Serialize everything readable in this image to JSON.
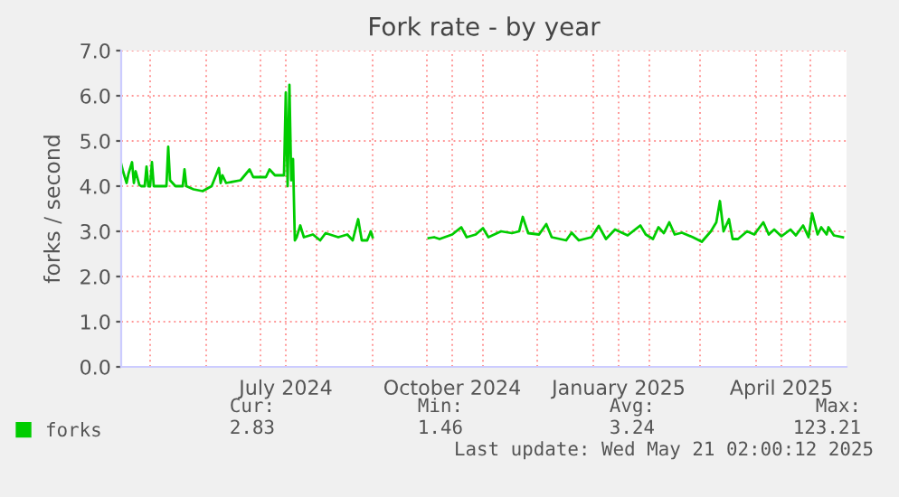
{
  "chart_data": {
    "type": "line",
    "title": "Fork rate - by year",
    "ylabel": "forks / second",
    "x": [
      "2024-04-15",
      "2024-04-16",
      "2024-04-18",
      "2024-04-19",
      "2024-04-21",
      "2024-04-22",
      "2024-04-23",
      "2024-04-25",
      "2024-04-26",
      "2024-04-28",
      "2024-04-29",
      "2024-04-30",
      "2024-05-01",
      "2024-05-02",
      "2024-05-03",
      "2024-05-10",
      "2024-05-11",
      "2024-05-12",
      "2024-05-15",
      "2024-05-19",
      "2024-05-20",
      "2024-05-21",
      "2024-05-25",
      "2024-05-30",
      "2024-06-04",
      "2024-06-08",
      "2024-06-09",
      "2024-06-10",
      "2024-06-12",
      "2024-06-20",
      "2024-06-25",
      "2024-06-27",
      "2024-07-04",
      "2024-07-06",
      "2024-07-09",
      "2024-07-14",
      "2024-07-15",
      "2024-07-16",
      "2024-07-17",
      "2024-07-18",
      "2024-07-19",
      "2024-07-20",
      "2024-07-21",
      "2024-07-23",
      "2024-07-25",
      "2024-07-30",
      "2024-08-03",
      "2024-08-06",
      "2024-08-13",
      "2024-08-18",
      "2024-08-21",
      "2024-08-24",
      "2024-08-26",
      "2024-08-29",
      "2024-08-31",
      "2024-09-01",
      "2024-09-15",
      "2024-10-02",
      "2024-10-05",
      "2024-10-08",
      "2024-10-15",
      "2024-10-20",
      "2024-10-23",
      "2024-10-28",
      "2024-11-01",
      "2024-11-04",
      "2024-11-11",
      "2024-11-17",
      "2024-11-21",
      "2024-11-23",
      "2024-11-26",
      "2024-12-02",
      "2024-12-06",
      "2024-12-09",
      "2024-12-17",
      "2024-12-20",
      "2024-12-24",
      "2024-12-31",
      "2025-01-04",
      "2025-01-08",
      "2025-01-13",
      "2025-01-20",
      "2025-01-27",
      "2025-01-30",
      "2025-02-03",
      "2025-02-06",
      "2025-02-09",
      "2025-02-12",
      "2025-02-15",
      "2025-02-19",
      "2025-02-25",
      "2025-03-02",
      "2025-03-07",
      "2025-03-10",
      "2025-03-12",
      "2025-03-14",
      "2025-03-17",
      "2025-03-19",
      "2025-03-22",
      "2025-03-27",
      "2025-03-31",
      "2025-04-05",
      "2025-04-08",
      "2025-04-11",
      "2025-04-15",
      "2025-04-20",
      "2025-04-23",
      "2025-04-27",
      "2025-04-30",
      "2025-05-02",
      "2025-05-05",
      "2025-05-07",
      "2025-05-10",
      "2025-05-11",
      "2025-05-14",
      "2025-05-19"
    ],
    "series": [
      {
        "name": "forks",
        "color": "#00cc00",
        "values": [
          4.49,
          4.33,
          4.07,
          4.27,
          4.53,
          4.07,
          4.33,
          4.03,
          4.0,
          4.0,
          4.43,
          4.0,
          4.0,
          4.53,
          4.0,
          4.0,
          4.87,
          4.13,
          4.0,
          4.0,
          4.37,
          4.0,
          3.93,
          3.89,
          4.0,
          4.4,
          4.07,
          4.24,
          4.07,
          4.13,
          4.37,
          4.2,
          4.2,
          4.37,
          4.24,
          4.24,
          6.07,
          4.0,
          6.24,
          4.13,
          4.6,
          2.8,
          2.87,
          3.13,
          2.87,
          2.93,
          2.8,
          2.96,
          2.87,
          2.93,
          2.8,
          3.27,
          2.8,
          2.8,
          3.0,
          2.87,
          null,
          2.85,
          2.87,
          2.83,
          2.93,
          3.09,
          2.87,
          2.93,
          3.07,
          2.87,
          3.0,
          2.96,
          3.0,
          3.32,
          2.96,
          2.93,
          3.16,
          2.87,
          2.8,
          2.97,
          2.8,
          2.87,
          3.12,
          2.83,
          3.04,
          2.91,
          3.13,
          2.93,
          2.83,
          3.09,
          2.96,
          3.2,
          2.93,
          2.97,
          2.87,
          2.77,
          3.0,
          3.2,
          3.67,
          3.0,
          3.27,
          2.83,
          2.83,
          3.0,
          2.93,
          3.2,
          2.93,
          3.04,
          2.89,
          3.04,
          2.91,
          3.13,
          2.87,
          3.4,
          2.93,
          3.09,
          2.93,
          3.09,
          2.91,
          2.87
        ]
      }
    ],
    "xlim": [
      "2024-04-15",
      "2025-05-21"
    ],
    "xticks": [
      {
        "value": "2024-05-01",
        "label": null
      },
      {
        "value": "2024-06-01",
        "label": null
      },
      {
        "value": "2024-07-01",
        "label": null
      },
      {
        "value": "2024-07-15",
        "label": "July 2024"
      },
      {
        "value": "2024-08-01",
        "label": null
      },
      {
        "value": "2024-09-01",
        "label": null
      },
      {
        "value": "2024-10-01",
        "label": null
      },
      {
        "value": "2024-10-15",
        "label": "October 2024"
      },
      {
        "value": "2024-11-01",
        "label": null
      },
      {
        "value": "2024-12-01",
        "label": null
      },
      {
        "value": "2025-01-01",
        "label": null
      },
      {
        "value": "2025-01-15",
        "label": "January 2025"
      },
      {
        "value": "2025-02-01",
        "label": null
      },
      {
        "value": "2025-03-01",
        "label": null
      },
      {
        "value": "2025-04-01",
        "label": null
      },
      {
        "value": "2025-04-15",
        "label": "April 2025"
      },
      {
        "value": "2025-05-01",
        "label": null
      }
    ],
    "ylim": [
      0,
      7
    ],
    "yticks": [
      {
        "value": 0,
        "label": "0.0"
      },
      {
        "value": 1,
        "label": "1.0"
      },
      {
        "value": 2,
        "label": "2.0"
      },
      {
        "value": 3,
        "label": "3.0"
      },
      {
        "value": 4,
        "label": "4.0"
      },
      {
        "value": 5,
        "label": "5.0"
      },
      {
        "value": 6,
        "label": "6.0"
      },
      {
        "value": 7,
        "label": "7.0"
      }
    ],
    "grid": true,
    "legend": "bottom left",
    "line_style": "solid",
    "marker": "none",
    "annotations": [
      "Cur:",
      "Min:",
      "Avg:",
      "Max:",
      "2.83",
      "1.46",
      "3.24",
      "123.21",
      "Last update: Wed May 21 02:00:12 2025"
    ]
  }
}
